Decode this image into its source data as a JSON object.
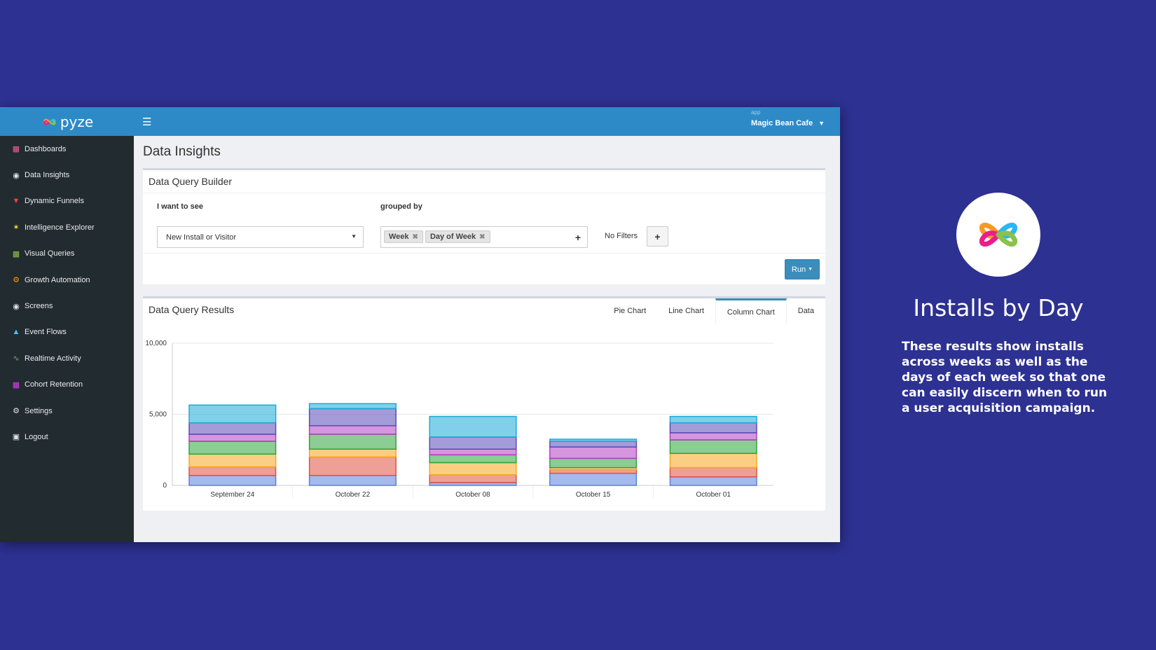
{
  "app": {
    "brand": "pyze",
    "app_label": "app",
    "app_name": "Magic Bean Cafe"
  },
  "sidebar": {
    "items": [
      {
        "label": "Dashboards",
        "icon": "dashboards-icon"
      },
      {
        "label": "Data Insights",
        "icon": "data-insights-icon"
      },
      {
        "label": "Dynamic Funnels",
        "icon": "funnel-icon"
      },
      {
        "label": "Intelligence Explorer",
        "icon": "explorer-icon"
      },
      {
        "label": "Visual Queries",
        "icon": "visual-queries-icon"
      },
      {
        "label": "Growth Automation",
        "icon": "gears-icon"
      },
      {
        "label": "Screens",
        "icon": "screens-icon"
      },
      {
        "label": "Event Flows",
        "icon": "event-flows-icon"
      },
      {
        "label": "Realtime Activity",
        "icon": "realtime-icon"
      },
      {
        "label": "Cohort Retention",
        "icon": "cohort-icon"
      },
      {
        "label": "Settings",
        "icon": "gear-icon"
      },
      {
        "label": "Logout",
        "icon": "unlock-icon"
      }
    ]
  },
  "main": {
    "page_title": "Data Insights",
    "query_builder": {
      "title": "Data Query Builder",
      "want_label": "I want to see",
      "want_value": "New Install or Visitor",
      "group_label": "grouped by",
      "group_tags": [
        "Week",
        "Day of Week"
      ],
      "filters_label": "No Filters",
      "run_label": "Run"
    },
    "results": {
      "title": "Data Query Results",
      "tabs": [
        "Pie Chart",
        "Line Chart",
        "Column Chart",
        "Data"
      ],
      "active_tab": "Column Chart"
    }
  },
  "chart_data": {
    "type": "bar",
    "stacked": true,
    "categories": [
      "September 24",
      "October 22",
      "October 08",
      "October 15",
      "October 01"
    ],
    "ylim": [
      0,
      10000
    ],
    "y_ticks": [
      "0",
      "5,000",
      "10,000"
    ],
    "grid": true,
    "series": [
      {
        "values": [
          700,
          700,
          200,
          850,
          600
        ],
        "color": "#5b7fdf"
      },
      {
        "values": [
          600,
          1300,
          550,
          250,
          650
        ],
        "color": "#e0523f"
      },
      {
        "values": [
          900,
          550,
          850,
          150,
          1000
        ],
        "color": "#f7a81e"
      },
      {
        "values": [
          900,
          1050,
          550,
          650,
          950
        ],
        "color": "#2ea43a"
      },
      {
        "values": [
          500,
          600,
          400,
          800,
          500
        ],
        "color": "#b23fc2"
      },
      {
        "values": [
          800,
          1200,
          850,
          400,
          700
        ],
        "color": "#5a4bb8"
      },
      {
        "values": [
          1250,
          350,
          1450,
          150,
          450
        ],
        "color": "#1aa9d9"
      }
    ]
  },
  "promo": {
    "title": "Installs by Day",
    "text": "These results show installs across weeks as well as the days of each week so that one can easily discern when to run a user acquisition campaign."
  }
}
